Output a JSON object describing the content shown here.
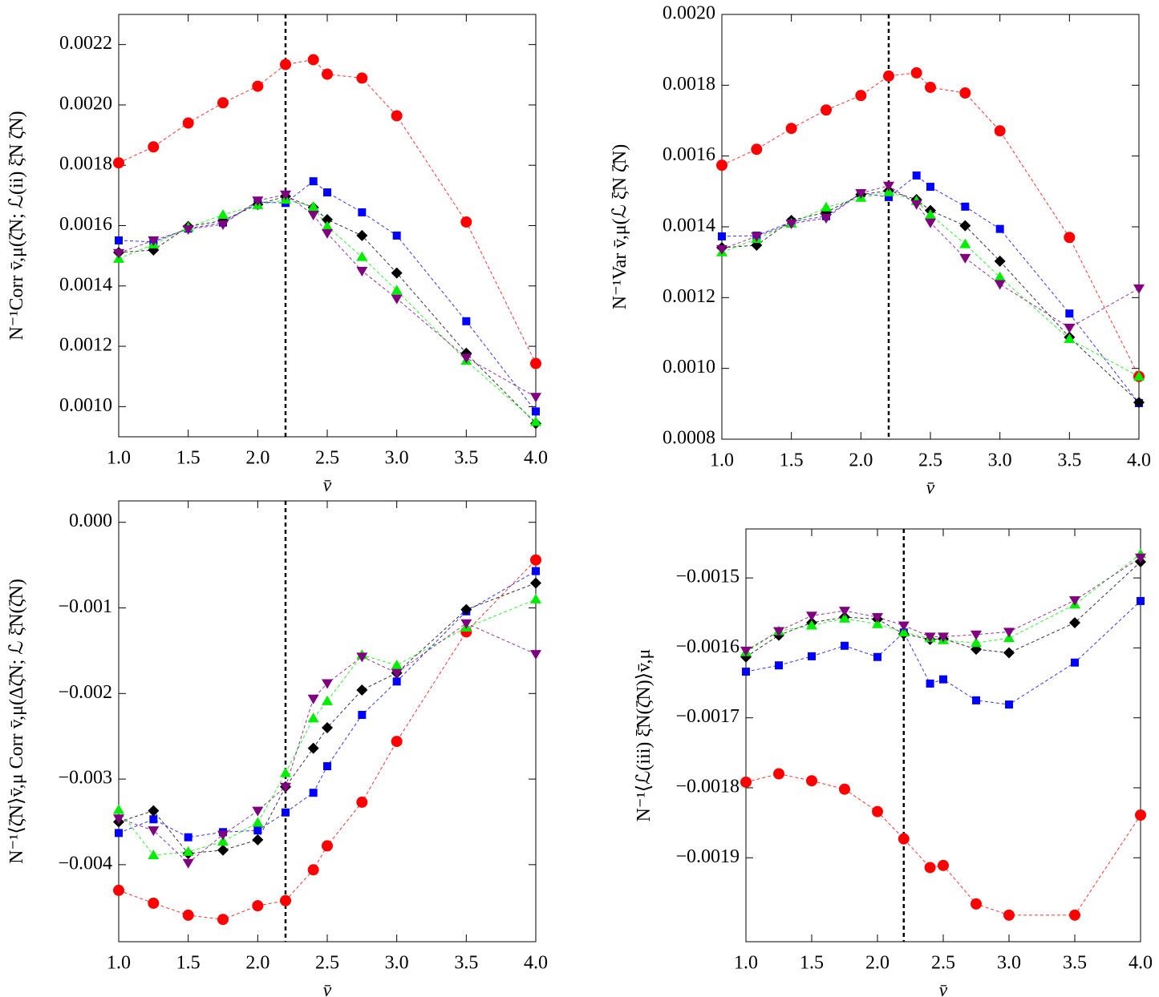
{
  "chart_data": [
    {
      "type": "line",
      "y_label": "N⁻¹Corr v̄,μ(ζ̄N; ℒ(ii) ξ̄N ζ̄N)",
      "x_label": "v̄",
      "x": [
        1.0,
        1.25,
        1.5,
        1.75,
        2.0,
        2.2,
        2.4,
        2.5,
        2.75,
        3.0,
        3.5,
        4.0
      ],
      "xlim": [
        1,
        4
      ],
      "xticks": [
        {
          "value": 1,
          "label": "1.0"
        },
        {
          "value": 1.5,
          "label": "1.5"
        },
        {
          "value": 2,
          "label": "2.0"
        },
        {
          "value": 2.5,
          "label": "2.5"
        },
        {
          "value": 3,
          "label": "3.0"
        },
        {
          "value": 3.5,
          "label": "3.5"
        },
        {
          "value": 4,
          "label": "4.0"
        }
      ],
      "ylim": [
        0.0009,
        0.0023
      ],
      "yticks": [
        {
          "value": 0.001,
          "label": "0.0010"
        },
        {
          "value": 0.0012,
          "label": "0.0012"
        },
        {
          "value": 0.0014,
          "label": "0.0014"
        },
        {
          "value": 0.0016,
          "label": "0.0016"
        },
        {
          "value": 0.0018,
          "label": "0.0018"
        },
        {
          "value": 0.002,
          "label": "0.0020"
        },
        {
          "value": 0.0022,
          "label": "0.0022"
        }
      ],
      "vline_x": 2.2,
      "series": [
        {
          "color": "#ff0000",
          "marker": "circle",
          "values": [
            0.001808,
            0.001861,
            0.00194,
            0.002007,
            0.002062,
            0.002134,
            0.00215,
            0.002102,
            0.002089,
            0.001964,
            0.001612,
            0.001143
          ]
        },
        {
          "color": "#0000ff",
          "marker": "square",
          "values": [
            0.001551,
            0.001546,
            0.00159,
            0.00161,
            0.001678,
            0.001675,
            0.001747,
            0.00171,
            0.001644,
            0.001567,
            0.001283,
            0.000984
          ]
        },
        {
          "color": "#000000",
          "marker": "diamond",
          "values": [
            0.001511,
            0.001519,
            0.001597,
            0.001617,
            0.00167,
            0.001697,
            0.00166,
            0.00162,
            0.001567,
            0.001443,
            0.001177,
            0.000944
          ]
        },
        {
          "color": "#00ee00",
          "marker": "triangle-up",
          "values": [
            0.00149,
            0.001538,
            0.001594,
            0.001636,
            0.001668,
            0.001686,
            0.001662,
            0.001597,
            0.001496,
            0.001385,
            0.001152,
            0.000949
          ]
        },
        {
          "color": "#800080",
          "marker": "triangle-down",
          "values": [
            0.001509,
            0.001551,
            0.001588,
            0.001604,
            0.001683,
            0.001703,
            0.001636,
            0.001575,
            0.00145,
            0.001358,
            0.001162,
            0.001032
          ]
        }
      ]
    },
    {
      "type": "line",
      "y_label": "N⁻¹Var v̄,μ(ℒ ξ̄N ζ̄N)",
      "x_label": "v̄",
      "x": [
        1.0,
        1.25,
        1.5,
        1.75,
        2.0,
        2.2,
        2.4,
        2.5,
        2.75,
        3.0,
        3.5,
        4.0
      ],
      "xlim": [
        1,
        4
      ],
      "xticks": [
        {
          "value": 1,
          "label": "1.0"
        },
        {
          "value": 1.5,
          "label": "1.5"
        },
        {
          "value": 2,
          "label": "2.0"
        },
        {
          "value": 2.5,
          "label": "2.5"
        },
        {
          "value": 3,
          "label": "3.0"
        },
        {
          "value": 3.5,
          "label": "3.5"
        },
        {
          "value": 4,
          "label": "4.0"
        }
      ],
      "ylim": [
        0.0008,
        0.002
      ],
      "yticks": [
        {
          "value": 0.0008,
          "label": "0.0008"
        },
        {
          "value": 0.001,
          "label": "0.0010"
        },
        {
          "value": 0.0012,
          "label": "0.0012"
        },
        {
          "value": 0.0014,
          "label": "0.0014"
        },
        {
          "value": 0.0016,
          "label": "0.0016"
        },
        {
          "value": 0.0018,
          "label": "0.0018"
        },
        {
          "value": 0.002,
          "label": "0.0020"
        }
      ],
      "vline_x": 2.2,
      "series": [
        {
          "color": "#ff0000",
          "marker": "circle",
          "values": [
            0.001574,
            0.001619,
            0.001678,
            0.00173,
            0.001771,
            0.001826,
            0.001835,
            0.001794,
            0.001778,
            0.001671,
            0.00137,
            0.000977
          ]
        },
        {
          "color": "#0000ff",
          "marker": "square",
          "values": [
            0.001373,
            0.001375,
            0.001414,
            0.00143,
            0.001495,
            0.001484,
            0.001545,
            0.001513,
            0.001457,
            0.001394,
            0.001155,
            0.000902
          ]
        },
        {
          "color": "#000000",
          "marker": "diamond",
          "values": [
            0.001341,
            0.001348,
            0.001418,
            0.001441,
            0.001491,
            0.001502,
            0.001477,
            0.001446,
            0.001403,
            0.001303,
            0.001088,
            0.000904
          ]
        },
        {
          "color": "#00ee00",
          "marker": "triangle-up",
          "values": [
            0.001328,
            0.001366,
            0.001409,
            0.001455,
            0.001482,
            0.001498,
            0.001473,
            0.001434,
            0.001351,
            0.001258,
            0.001083,
            0.000977
          ]
        },
        {
          "color": "#800080",
          "marker": "triangle-down",
          "values": [
            0.001337,
            0.001373,
            0.001409,
            0.001425,
            0.001495,
            0.001516,
            0.001464,
            0.001412,
            0.001312,
            0.001238,
            0.001115,
            0.001226
          ]
        }
      ]
    },
    {
      "type": "line",
      "y_label": "N⁻¹⟨ζ̄N⟩v̄,μ Corr v̄,μ(Δζ̄N; ℒ ξ̄N(ζ̄N)",
      "x_label": "v̄",
      "x": [
        1.0,
        1.25,
        1.5,
        1.75,
        2.0,
        2.2,
        2.4,
        2.5,
        2.75,
        3.0,
        3.5,
        4.0
      ],
      "xlim": [
        1,
        4
      ],
      "xticks": [
        {
          "value": 1,
          "label": "1.0"
        },
        {
          "value": 1.5,
          "label": "1.5"
        },
        {
          "value": 2,
          "label": "2.0"
        },
        {
          "value": 2.5,
          "label": "2.5"
        },
        {
          "value": 3,
          "label": "3.0"
        },
        {
          "value": 3.5,
          "label": "3.5"
        },
        {
          "value": 4,
          "label": "4.0"
        }
      ],
      "ylim": [
        -0.0049,
        0.00025
      ],
      "yticks": [
        {
          "value": 0,
          "label": "0.000"
        },
        {
          "value": -0.001,
          "label": "−0.001"
        },
        {
          "value": -0.002,
          "label": "−0.002"
        },
        {
          "value": -0.003,
          "label": "−0.003"
        },
        {
          "value": -0.004,
          "label": "−0.004"
        }
      ],
      "vline_x": 2.2,
      "series": [
        {
          "color": "#ff0000",
          "marker": "circle",
          "values": [
            -0.0043,
            -0.00445,
            -0.00459,
            -0.00464,
            -0.00448,
            -0.00442,
            -0.00406,
            -0.00378,
            -0.00327,
            -0.00256,
            -0.00128,
            -0.00044
          ]
        },
        {
          "color": "#0000ff",
          "marker": "square",
          "values": [
            -0.00363,
            -0.00347,
            -0.00368,
            -0.00362,
            -0.0036,
            -0.00339,
            -0.00316,
            -0.00285,
            -0.00225,
            -0.00186,
            -0.00104,
            -0.00057
          ]
        },
        {
          "color": "#000000",
          "marker": "diamond",
          "values": [
            -0.0035,
            -0.00337,
            -0.00387,
            -0.00383,
            -0.00371,
            -0.00309,
            -0.00264,
            -0.0024,
            -0.00196,
            -0.00176,
            -0.00102,
            -0.00071
          ]
        },
        {
          "color": "#00ee00",
          "marker": "triangle-up",
          "values": [
            -0.00336,
            -0.00389,
            -0.00385,
            -0.00373,
            -0.00351,
            -0.00293,
            -0.00229,
            -0.00209,
            -0.00155,
            -0.00167,
            -0.00123,
            -0.0009
          ]
        },
        {
          "color": "#800080",
          "marker": "triangle-down",
          "values": [
            -0.00346,
            -0.0036,
            -0.00398,
            -0.00365,
            -0.00337,
            -0.00309,
            -0.00206,
            -0.00188,
            -0.00157,
            -0.00176,
            -0.00118,
            -0.00154
          ]
        }
      ]
    },
    {
      "type": "line",
      "y_label": "N⁻¹⟨ℒ(iii) ξ̄N(ζ̄N)⟩v̄,μ",
      "x_label": "v̄",
      "x": [
        1.0,
        1.25,
        1.5,
        1.75,
        2.0,
        2.2,
        2.4,
        2.5,
        2.75,
        3.0,
        3.5,
        4.0
      ],
      "xlim": [
        1,
        4
      ],
      "xticks": [
        {
          "value": 1,
          "label": "1.0"
        },
        {
          "value": 1.5,
          "label": "1.5"
        },
        {
          "value": 2,
          "label": "2.0"
        },
        {
          "value": 2.5,
          "label": "2.5"
        },
        {
          "value": 3,
          "label": "3.0"
        },
        {
          "value": 3.5,
          "label": "3.5"
        },
        {
          "value": 4,
          "label": "4.0"
        }
      ],
      "ylim": [
        -0.00202,
        -0.00143
      ],
      "yticks": [
        {
          "value": -0.0015,
          "label": "−0.0015"
        },
        {
          "value": -0.0016,
          "label": "−0.0016"
        },
        {
          "value": -0.0017,
          "label": "−0.0017"
        },
        {
          "value": -0.0018,
          "label": "−0.0018"
        },
        {
          "value": -0.0019,
          "label": "−0.0019"
        }
      ],
      "vline_x": 2.2,
      "series": [
        {
          "color": "#ff0000",
          "marker": "circle",
          "values": [
            -0.001792,
            -0.00178,
            -0.00179,
            -0.001802,
            -0.001834,
            -0.001873,
            -0.001914,
            -0.001911,
            -0.001966,
            -0.001982,
            -0.001982,
            -0.001839
          ]
        },
        {
          "color": "#0000ff",
          "marker": "square",
          "values": [
            -0.001634,
            -0.001625,
            -0.001612,
            -0.001597,
            -0.001613,
            -0.001578,
            -0.001651,
            -0.001645,
            -0.001675,
            -0.001681,
            -0.001621,
            -0.001533
          ]
        },
        {
          "color": "#000000",
          "marker": "diamond",
          "values": [
            -0.001613,
            -0.001582,
            -0.001564,
            -0.001556,
            -0.001559,
            -0.00158,
            -0.001588,
            -0.001587,
            -0.001602,
            -0.001607,
            -0.001564,
            -0.001477
          ]
        },
        {
          "color": "#00ee00",
          "marker": "triangle-up",
          "values": [
            -0.001606,
            -0.001576,
            -0.001568,
            -0.001558,
            -0.001566,
            -0.001578,
            -0.001586,
            -0.001589,
            -0.001593,
            -0.001586,
            -0.001538,
            -0.001466
          ]
        },
        {
          "color": "#800080",
          "marker": "triangle-down",
          "values": [
            -0.001604,
            -0.001576,
            -0.001554,
            -0.001547,
            -0.001556,
            -0.001568,
            -0.001584,
            -0.001584,
            -0.001581,
            -0.001577,
            -0.001532,
            -0.001471
          ]
        }
      ]
    }
  ]
}
